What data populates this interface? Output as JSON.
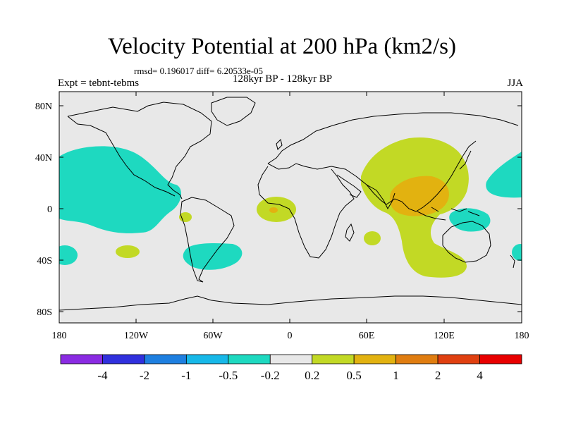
{
  "header": {
    "title": "Velocity Potential at 200 hPa (km2/s)",
    "stats": "rmsd= 0.196017  diff= 6.20533e-05",
    "experiment": "Expt = tebnt-tebms",
    "period": "128kyr BP - 128kyr BP",
    "season": "JJA"
  },
  "axes": {
    "lat_labels": [
      "80N",
      "40N",
      "0",
      "40S",
      "80S"
    ],
    "lon_labels": [
      "180",
      "120W",
      "60W",
      "0",
      "60E",
      "120E",
      "180"
    ]
  },
  "colorbar": {
    "colors": [
      "#8a2be2",
      "#3030dd",
      "#1e7fe0",
      "#17b8e8",
      "#1ed9c0",
      "#e8e8e8",
      "#c2d925",
      "#e2b210",
      "#e07d10",
      "#e04010",
      "#e80000"
    ],
    "labels": [
      "-4",
      "-2",
      "-1",
      "-0.5",
      "-0.2",
      "0.2",
      "0.5",
      "1",
      "2",
      "4"
    ]
  },
  "colors": {
    "neutral": "#e8e8e8",
    "negative_small": "#1ed9c0",
    "positive_small": "#c2d925",
    "positive_mid": "#e2b210",
    "positive_high": "#e07d10"
  }
}
